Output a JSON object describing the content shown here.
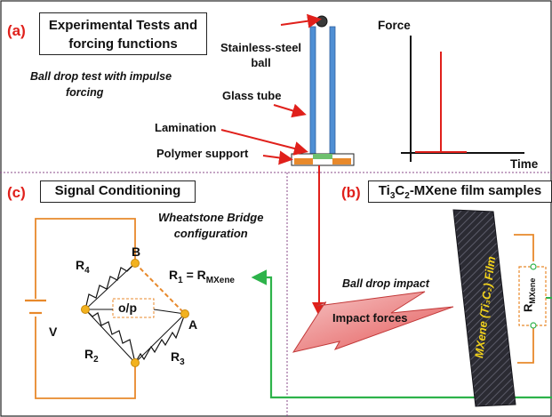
{
  "panel_a": {
    "tag": "(a)",
    "title_line1": "Experimental Tests and",
    "title_line2": "forcing functions",
    "subtitle_line1": "Ball drop test with impulse",
    "subtitle_line2": "forcing",
    "ball_label_line1": "Stainless-steel",
    "ball_label_line2": "ball",
    "tube_label": "Glass tube",
    "lamination_label": "Lamination",
    "polymer_label": "Polymer support",
    "force_axis": "Force",
    "time_axis": "Time"
  },
  "panel_c": {
    "tag": "(c)",
    "title": "Signal Conditioning",
    "bridge_line1": "Wheatstone Bridge",
    "bridge_line2": "configuration",
    "node_b": "B",
    "node_a": "A",
    "r4": "R",
    "r4_sub": "4",
    "r2": "R",
    "r2_sub": "2",
    "r3": "R",
    "r3_sub": "3",
    "r1_label": "R",
    "r1_sub": "1",
    "r1_eq": " = R",
    "r1_mxene_sub": "MXene",
    "output": "o/p",
    "voltage": "V"
  },
  "panel_b": {
    "tag": "(b)",
    "title_pre": "Ti",
    "title_sub1": "3",
    "title_mid": "C",
    "title_sub2": "2",
    "title_post": "-MXene film samples",
    "impact_label": "Ball drop impact",
    "impact_forces": "Impact forces",
    "film_label": "MXene (Ti₃C₂) Film",
    "r_label": "R",
    "r_sub": "MXene"
  },
  "colors": {
    "red": "#e0201b",
    "orange": "#e8892b",
    "blue": "#4f8fd4",
    "green": "#2db34a",
    "node": "#f2b21f",
    "film_dark": "#26262e",
    "film_text": "#f2d21b"
  }
}
